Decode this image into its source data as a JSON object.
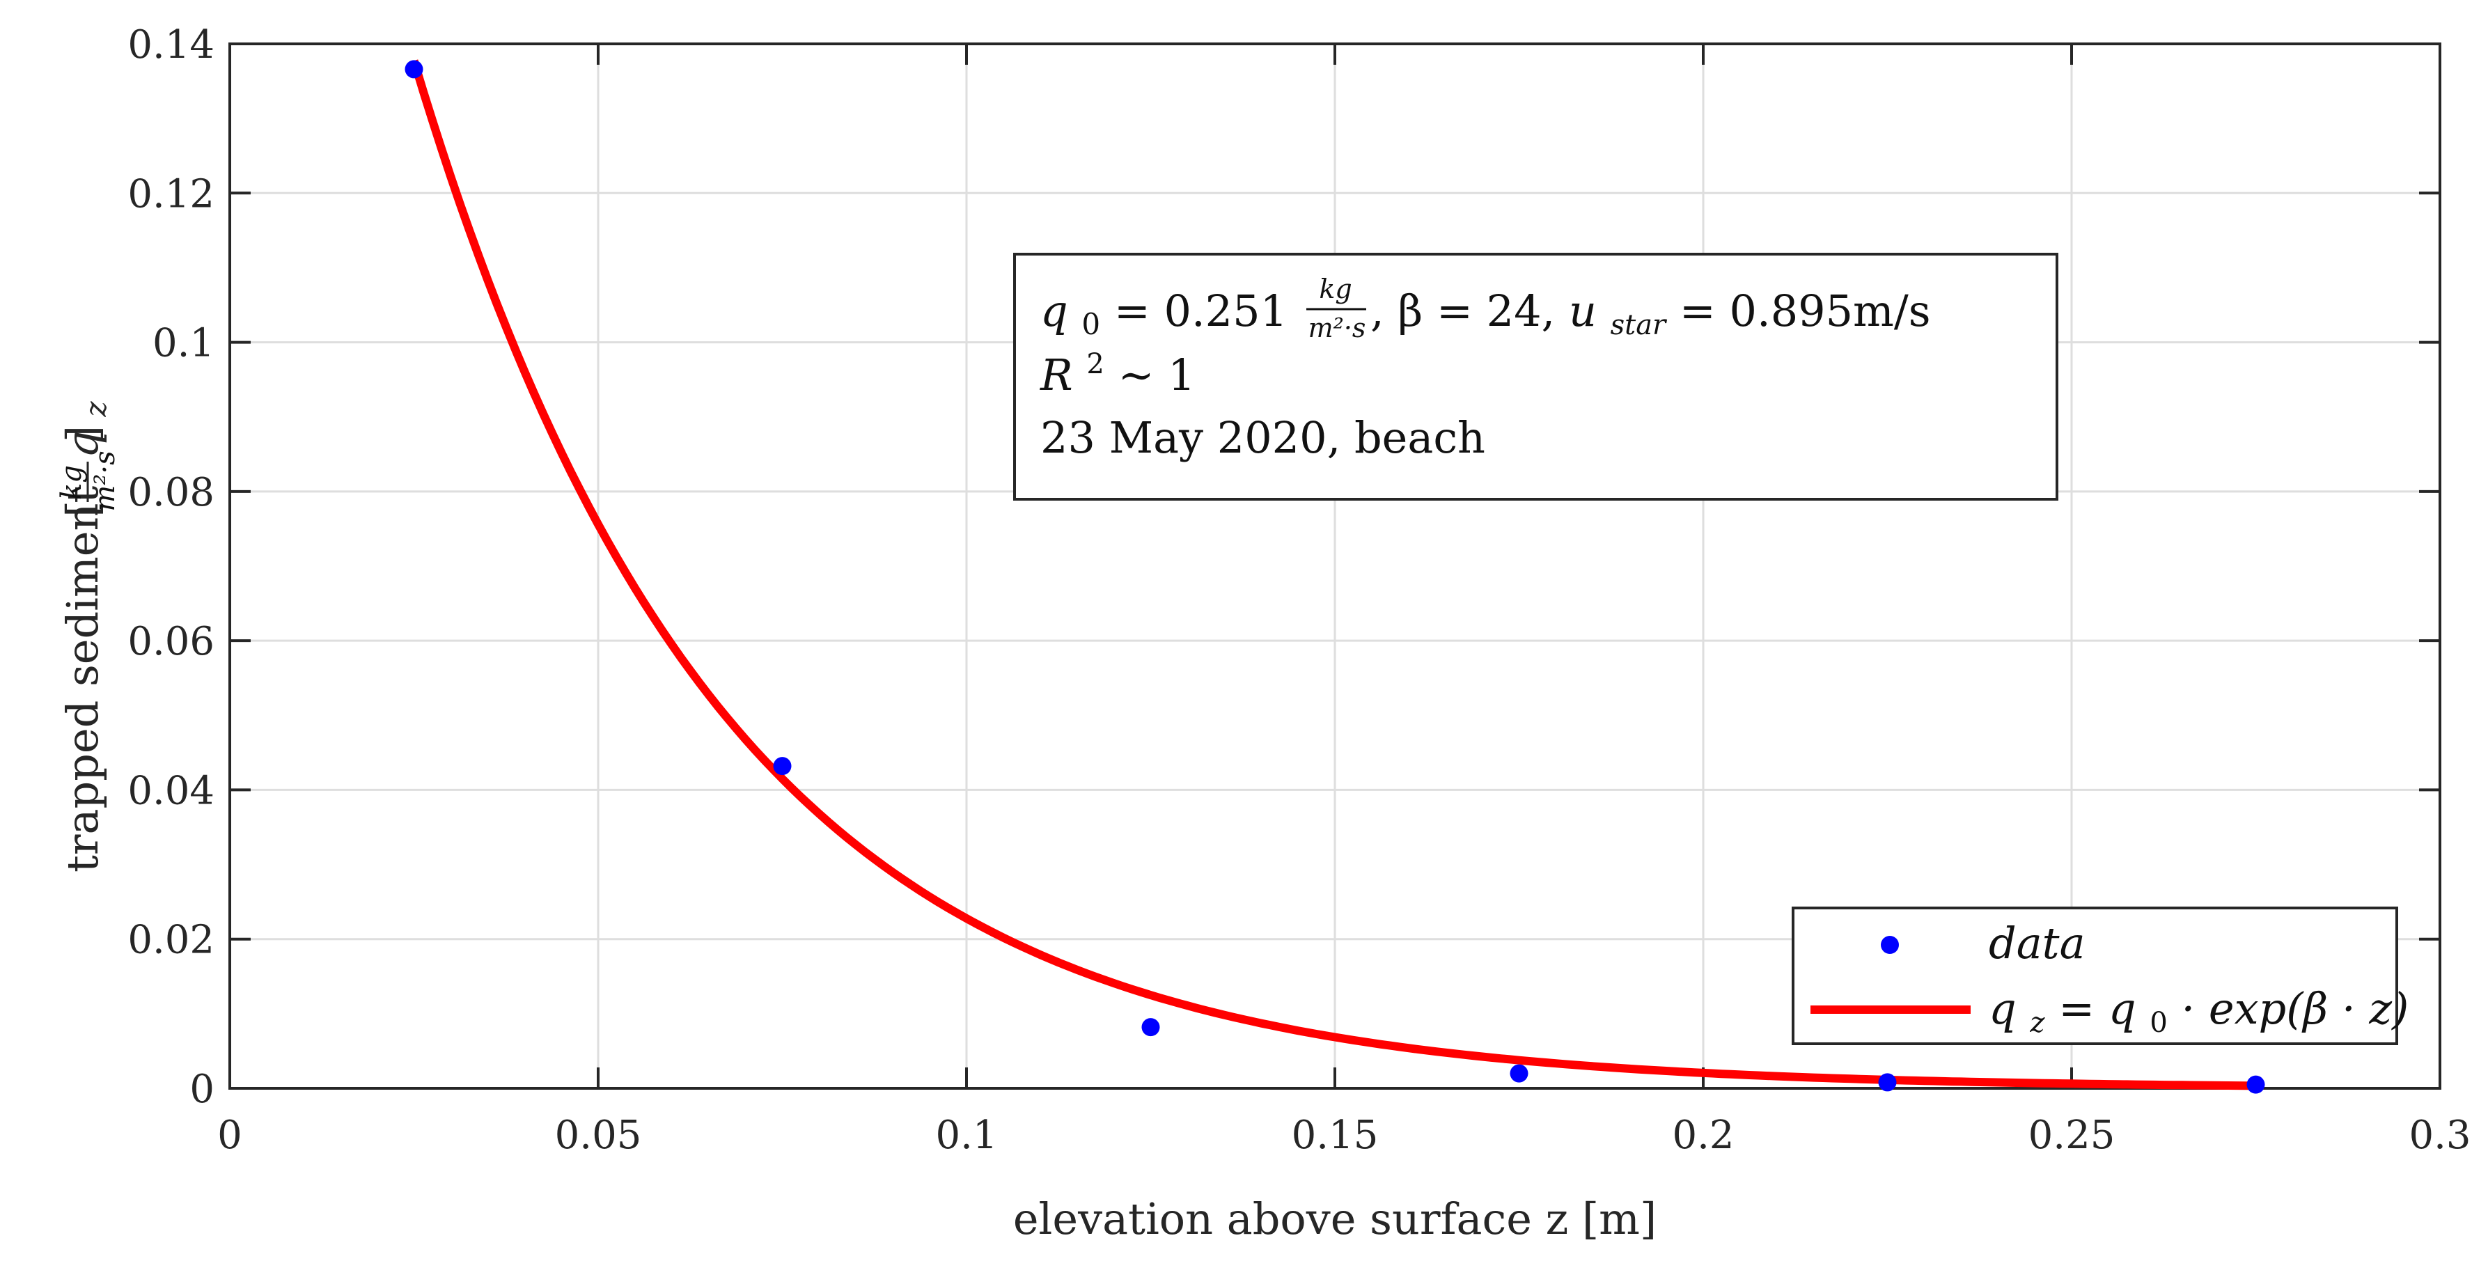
{
  "chart_data": {
    "type": "scatter",
    "title": "",
    "xlabel": "elevation above surface z [m]",
    "ylabel_text": "trapped sediment",
    "ylabel_symbol": "q",
    "ylabel_subscript": "z",
    "ylabel_unit_numerator": "kg",
    "ylabel_unit_denominator": "m²·s",
    "xlim": [
      0,
      0.3
    ],
    "ylim": [
      0,
      0.14
    ],
    "xticks": [
      0,
      0.05,
      0.1,
      0.15,
      0.2,
      0.25,
      0.3
    ],
    "xtick_labels": [
      "0",
      "0.05",
      "0.1",
      "0.15",
      "0.2",
      "0.25",
      "0.3"
    ],
    "yticks": [
      0,
      0.02,
      0.04,
      0.06,
      0.08,
      0.1,
      0.12,
      0.14
    ],
    "ytick_labels": [
      "0",
      "0.02",
      "0.04",
      "0.06",
      "0.08",
      "0.1",
      "0.12",
      "0.14"
    ],
    "grid": true,
    "legend_position": "bottom-right",
    "series": [
      {
        "name": "data",
        "kind": "scatter",
        "color": "#0000ff",
        "x": [
          0.025,
          0.075,
          0.125,
          0.175,
          0.225,
          0.275
        ],
        "y": [
          0.1366,
          0.0432,
          0.0082,
          0.002,
          0.0008,
          0.0005
        ]
      },
      {
        "name": "q_z = q_0 · exp(β · z)",
        "kind": "line",
        "color": "#ff0000",
        "fit": {
          "q0": 0.251,
          "beta": 24
        },
        "x_range": [
          0.025,
          0.275
        ]
      }
    ],
    "legend": {
      "data_label": "data",
      "fit_lhs_symbol": "q",
      "fit_lhs_subscript": "z",
      "fit_eq": " = ",
      "fit_rhs_symbol": "q",
      "fit_rhs_subscript": "0",
      "fit_rhs_rest": " · exp(β · z)"
    },
    "annotation": {
      "line1_q": "q",
      "line1_q_sub": "0",
      "line1_eq": " = 0.251",
      "line1_unit_num": "kg",
      "line1_unit_den": "m²·s",
      "line1_beta": ", β = 24, ",
      "line1_u": "u",
      "line1_u_sub": "star",
      "line1_u_val": " = 0.895m/s",
      "line2_r": "R",
      "line2_sup": "2",
      "line2_rest": " ∼ 1",
      "line3": "23 May 2020, beach"
    }
  }
}
